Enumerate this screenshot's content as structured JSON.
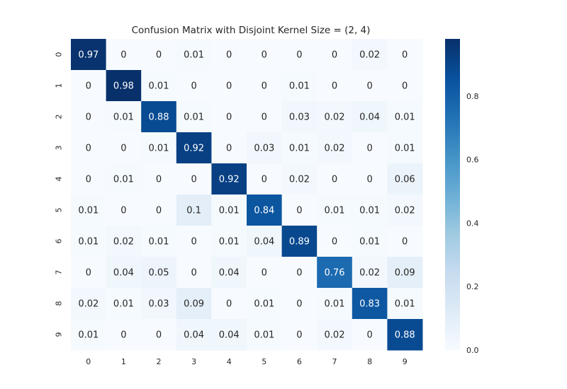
{
  "chart_data": {
    "type": "heatmap",
    "title": "Confusion Matrix with Disjoint Kernel Size = (2, 4)",
    "xlabel": "",
    "ylabel": "",
    "x_categories": [
      "0",
      "1",
      "2",
      "3",
      "4",
      "5",
      "6",
      "7",
      "8",
      "9"
    ],
    "y_categories": [
      "0",
      "1",
      "2",
      "3",
      "4",
      "5",
      "6",
      "7",
      "8",
      "9"
    ],
    "values": [
      [
        0.97,
        0,
        0,
        0.01,
        0,
        0,
        0,
        0,
        0.02,
        0
      ],
      [
        0,
        0.98,
        0.01,
        0,
        0,
        0,
        0.01,
        0,
        0,
        0
      ],
      [
        0,
        0.01,
        0.88,
        0.01,
        0,
        0,
        0.03,
        0.02,
        0.04,
        0.01
      ],
      [
        0,
        0,
        0.01,
        0.92,
        0,
        0.03,
        0.01,
        0.02,
        0,
        0.01
      ],
      [
        0,
        0.01,
        0,
        0,
        0.92,
        0,
        0.02,
        0,
        0,
        0.06
      ],
      [
        0.01,
        0,
        0,
        0.1,
        0.01,
        0.84,
        0,
        0.01,
        0.01,
        0.02
      ],
      [
        0.01,
        0.02,
        0.01,
        0,
        0.01,
        0.04,
        0.89,
        0,
        0.01,
        0
      ],
      [
        0,
        0.04,
        0.05,
        0,
        0.04,
        0,
        0,
        0.76,
        0.02,
        0.09
      ],
      [
        0.02,
        0.01,
        0.03,
        0.09,
        0,
        0.01,
        0,
        0.01,
        0.83,
        0.01
      ],
      [
        0.01,
        0,
        0,
        0.04,
        0.04,
        0.01,
        0,
        0.02,
        0,
        0.88
      ]
    ],
    "colormap": "Blues",
    "vmin": 0,
    "vmax": 0.98,
    "colorbar_ticks": [
      "0.0",
      "0.2",
      "0.4",
      "0.6",
      "0.8"
    ],
    "colorbar_tick_values": [
      0,
      0.2,
      0.4,
      0.6,
      0.8
    ],
    "annotations_shown": true,
    "grid": false
  }
}
